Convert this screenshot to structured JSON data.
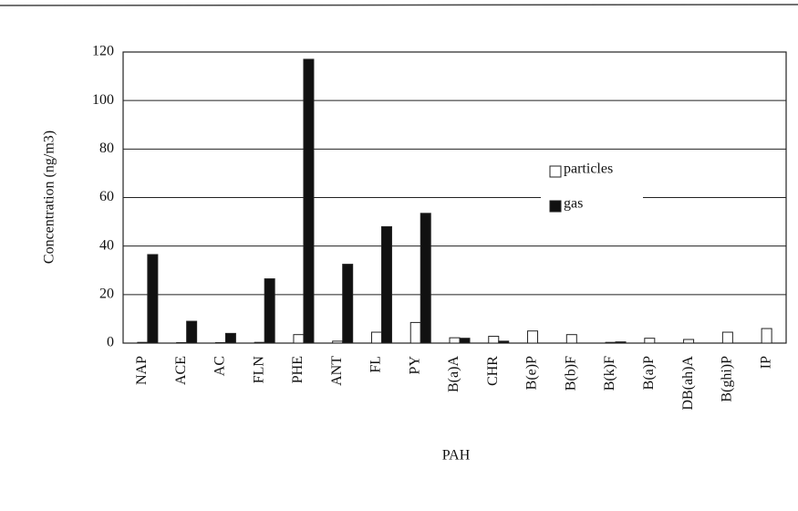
{
  "chart_data": {
    "type": "bar",
    "categories": [
      "NAP",
      "ACE",
      "AC",
      "FLN",
      "PHE",
      "ANT",
      "FL",
      "PY",
      "B(a)A",
      "CHR",
      "B(e)P",
      "B(b)F",
      "B(k)F",
      "B(a)P",
      "DB(ah)A",
      "B(ghi)P",
      "IP"
    ],
    "series": [
      {
        "name": "particles",
        "color": "#ffffff",
        "values": [
          0.3,
          0.2,
          0.2,
          0.3,
          3.5,
          0.8,
          4.5,
          8.5,
          2.2,
          2.8,
          5,
          3.5,
          0.3,
          2,
          1.5,
          4.5,
          6
        ]
      },
      {
        "name": "gas",
        "color": "#111111",
        "values": [
          36.5,
          9,
          4,
          26.5,
          117,
          32.5,
          48,
          53.5,
          2,
          0.8,
          0,
          0,
          0.5,
          0,
          0,
          0,
          0
        ]
      }
    ],
    "x_label": "PAH",
    "y_label": "Concentration (ng/m3)",
    "ylim": [
      0,
      120
    ],
    "yticks": [
      0,
      20,
      40,
      60,
      80,
      100,
      120
    ],
    "grid": true
  }
}
